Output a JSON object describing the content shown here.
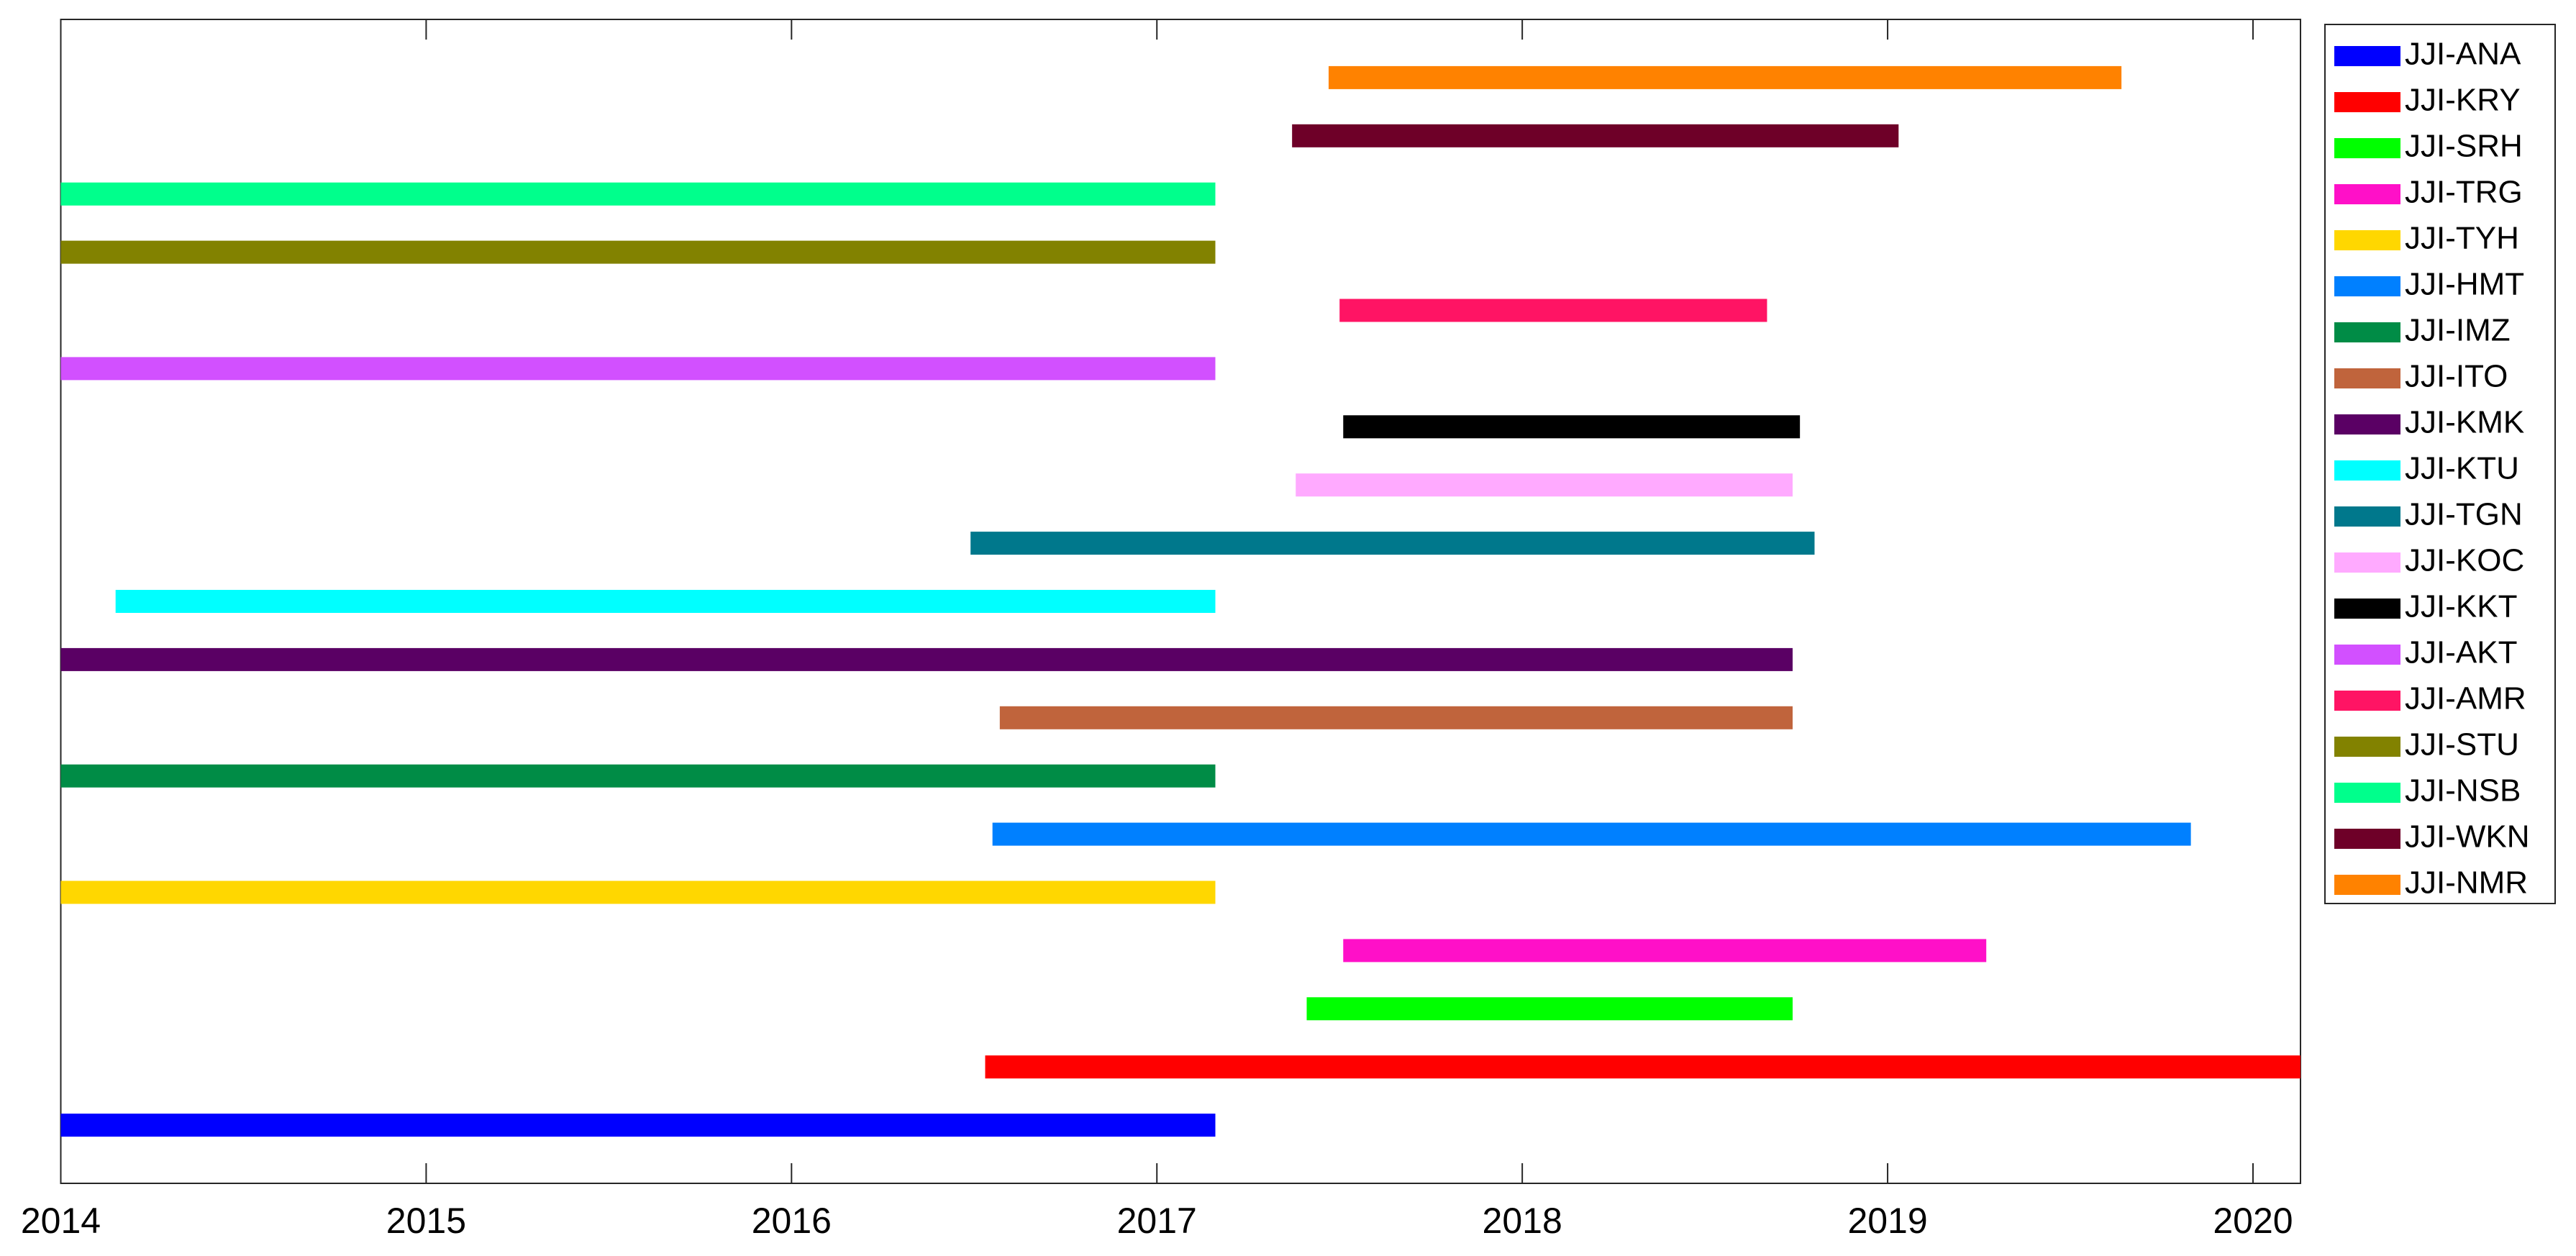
{
  "chart_data": {
    "type": "gantt",
    "xlim": [
      2014,
      2020.13
    ],
    "xticks": [
      2014,
      2015,
      2016,
      2017,
      2018,
      2019,
      2020
    ],
    "legend": "outside-right",
    "series": [
      {
        "name": "JJI-ANA",
        "color": "#0000ff",
        "start": 2014,
        "end": 2017.16
      },
      {
        "name": "JJI-KRY",
        "color": "#ff0000",
        "start": 2016.53,
        "end": 2020.13
      },
      {
        "name": "JJI-SRH",
        "color": "#00ff00",
        "start": 2017.41,
        "end": 2018.74
      },
      {
        "name": "JJI-TRG",
        "color": "#ff10c8",
        "start": 2017.51,
        "end": 2019.27
      },
      {
        "name": "JJI-TYH",
        "color": "#ffd700",
        "start": 2014,
        "end": 2017.16
      },
      {
        "name": "JJI-HMT",
        "color": "#0080ff",
        "start": 2016.55,
        "end": 2019.83
      },
      {
        "name": "JJI-IMZ",
        "color": "#008c46",
        "start": 2014,
        "end": 2017.16
      },
      {
        "name": "JJI-ITO",
        "color": "#c0643c",
        "start": 2016.57,
        "end": 2018.74
      },
      {
        "name": "JJI-KMK",
        "color": "#5a0064",
        "start": 2014,
        "end": 2018.74
      },
      {
        "name": "JJI-KTU",
        "color": "#00ffff",
        "start": 2014.15,
        "end": 2017.16
      },
      {
        "name": "JJI-TGN",
        "color": "#00788c",
        "start": 2016.49,
        "end": 2018.8
      },
      {
        "name": "JJI-KOC",
        "color": "#ffaaff",
        "start": 2017.38,
        "end": 2018.74
      },
      {
        "name": "JJI-KKT",
        "color": "#000000",
        "start": 2017.51,
        "end": 2018.76
      },
      {
        "name": "JJI-AKT",
        "color": "#d250ff",
        "start": 2014,
        "end": 2017.16
      },
      {
        "name": "JJI-AMR",
        "color": "#ff1464",
        "start": 2017.5,
        "end": 2018.67
      },
      {
        "name": "JJI-STU",
        "color": "#828200",
        "start": 2014,
        "end": 2017.16
      },
      {
        "name": "JJI-NSB",
        "color": "#00ff8c",
        "start": 2014,
        "end": 2017.16
      },
      {
        "name": "JJI-WKN",
        "color": "#6e0028",
        "start": 2017.37,
        "end": 2019.03
      },
      {
        "name": "JJI-NMR",
        "color": "#ff8200",
        "start": 2017.47,
        "end": 2019.64
      }
    ]
  }
}
